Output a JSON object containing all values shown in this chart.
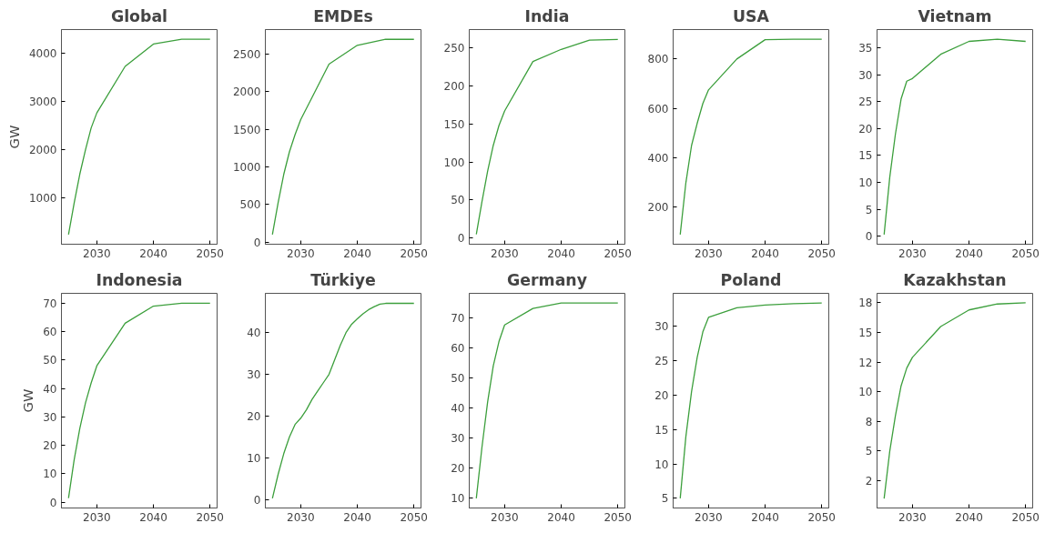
{
  "chart_data": [
    {
      "type": "line",
      "title": "Global",
      "ylabel": "GW",
      "color": "#3c9f3c",
      "x": [
        2025,
        2026,
        2027,
        2028,
        2029,
        2030,
        2035,
        2040,
        2045,
        2050
      ],
      "values": [
        250,
        900,
        1500,
        2000,
        2450,
        2760,
        3720,
        4180,
        4280,
        4280
      ],
      "xlim": [
        2023.75,
        2051.25
      ],
      "ylim": [
        50,
        4480
      ],
      "xticks": [
        2030,
        2040,
        2050
      ],
      "yticks": [
        1000,
        2000,
        3000,
        4000
      ]
    },
    {
      "type": "line",
      "title": "EMDEs",
      "color": "#3c9f3c",
      "x": [
        2025,
        2026,
        2027,
        2028,
        2029,
        2030,
        2035,
        2040,
        2045,
        2050
      ],
      "values": [
        100,
        520,
        900,
        1200,
        1430,
        1630,
        2370,
        2620,
        2700,
        2700
      ],
      "xlim": [
        2023.75,
        2051.25
      ],
      "ylim": [
        -30,
        2830
      ],
      "xticks": [
        2030,
        2040,
        2050
      ],
      "yticks": [
        0,
        500,
        1000,
        1500,
        2000,
        2500
      ]
    },
    {
      "type": "line",
      "title": "India",
      "color": "#3c9f3c",
      "x": [
        2025,
        2026,
        2027,
        2028,
        2029,
        2030,
        2035,
        2040,
        2045,
        2050
      ],
      "values": [
        5,
        48,
        88,
        122,
        148,
        167,
        232,
        248,
        260,
        261
      ],
      "xlim": [
        2023.75,
        2051.25
      ],
      "ylim": [
        -8,
        274
      ],
      "xticks": [
        2030,
        2040,
        2050
      ],
      "yticks": [
        0,
        50,
        100,
        150,
        200,
        250
      ]
    },
    {
      "type": "line",
      "title": "USA",
      "color": "#3c9f3c",
      "x": [
        2025,
        2026,
        2027,
        2028,
        2029,
        2030,
        2035,
        2040,
        2045,
        2050
      ],
      "values": [
        90,
        300,
        450,
        540,
        620,
        675,
        800,
        878,
        880,
        880
      ],
      "xlim": [
        2023.75,
        2051.25
      ],
      "ylim": [
        51,
        919
      ],
      "xticks": [
        2030,
        2040,
        2050
      ],
      "yticks": [
        200,
        400,
        600,
        800
      ]
    },
    {
      "type": "line",
      "title": "Vietnam",
      "color": "#3c9f3c",
      "x": [
        2025,
        2026,
        2027,
        2028,
        2029,
        2030,
        2035,
        2040,
        2045,
        2050
      ],
      "values": [
        0.3,
        11,
        19,
        25.5,
        28.8,
        29.3,
        33.8,
        36.2,
        36.6,
        36.2
      ],
      "xlim": [
        2023.75,
        2051.25
      ],
      "ylim": [
        -1.5,
        38.4
      ],
      "xticks": [
        2030,
        2040,
        2050
      ],
      "yticks": [
        0,
        5,
        10,
        15,
        20,
        25,
        30,
        35
      ]
    },
    {
      "type": "line",
      "title": "Indonesia",
      "ylabel": "GW",
      "color": "#3c9f3c",
      "x": [
        2025,
        2026,
        2027,
        2028,
        2029,
        2030,
        2035,
        2040,
        2045,
        2050
      ],
      "values": [
        1.5,
        15,
        26,
        35,
        42,
        48,
        63,
        69,
        70,
        70
      ],
      "xlim": [
        2023.75,
        2051.25
      ],
      "ylim": [
        -2,
        73.5
      ],
      "xticks": [
        2030,
        2040,
        2050
      ],
      "yticks": [
        0,
        10,
        20,
        30,
        40,
        50,
        60,
        70
      ]
    },
    {
      "type": "line",
      "title": "Türkiye",
      "color": "#3c9f3c",
      "x": [
        2025,
        2026,
        2027,
        2028,
        2029,
        2030,
        2031,
        2032,
        2033,
        2034,
        2035,
        2036,
        2037,
        2038,
        2039,
        2040,
        2041,
        2042,
        2043,
        2044,
        2045,
        2050
      ],
      "values": [
        0.3,
        6,
        11,
        15,
        18,
        19.5,
        21.5,
        24,
        26,
        28,
        30,
        33.5,
        37,
        40,
        42,
        43.3,
        44.5,
        45.5,
        46.2,
        46.8,
        47,
        47
      ],
      "xlim": [
        2023.75,
        2051.25
      ],
      "ylim": [
        -2,
        49.4
      ],
      "xticks": [
        2030,
        2040,
        2050
      ],
      "yticks": [
        0,
        10,
        20,
        30,
        40
      ]
    },
    {
      "type": "line",
      "title": "Germany",
      "color": "#3c9f3c",
      "x": [
        2025,
        2026,
        2027,
        2028,
        2029,
        2030,
        2035,
        2040,
        2045,
        2050
      ],
      "values": [
        10,
        27,
        42,
        54,
        62,
        67.5,
        73,
        74.8,
        74.8,
        74.8
      ],
      "xlim": [
        2023.75,
        2051.25
      ],
      "ylim": [
        6.8,
        78
      ],
      "xticks": [
        2030,
        2040,
        2050
      ],
      "yticks": [
        10,
        20,
        30,
        40,
        50,
        60,
        70
      ]
    },
    {
      "type": "line",
      "title": "Poland",
      "color": "#3c9f3c",
      "x": [
        2025,
        2026,
        2027,
        2028,
        2029,
        2030,
        2035,
        2040,
        2045,
        2050
      ],
      "values": [
        5,
        14,
        20.5,
        25.5,
        29.2,
        31.3,
        32.7,
        33.1,
        33.3,
        33.4
      ],
      "xlim": [
        2023.75,
        2051.25
      ],
      "ylim": [
        3.6,
        34.8
      ],
      "xticks": [
        2030,
        2040,
        2050
      ],
      "yticks": [
        5,
        10,
        15,
        20,
        25,
        30
      ]
    },
    {
      "type": "line",
      "title": "Kazakhstan",
      "color": "#3c9f3c",
      "x": [
        2025,
        2026,
        2027,
        2028,
        2029,
        2030,
        2035,
        2040,
        2045,
        2050
      ],
      "values": [
        1,
        5,
        8,
        10.5,
        12,
        12.9,
        15.5,
        16.9,
        17.4,
        17.5
      ],
      "xlim": [
        2023.75,
        2051.25
      ],
      "ylim": [
        0.2,
        18.3
      ],
      "xticks": [
        2030,
        2040,
        2050
      ],
      "yticks": [
        {
          "value": 2.5,
          "label": "2"
        },
        {
          "value": 5,
          "label": "5"
        },
        {
          "value": 7.5,
          "label": "8"
        },
        {
          "value": 10,
          "label": "10"
        },
        {
          "value": 12.5,
          "label": "12"
        },
        {
          "value": 15,
          "label": "15"
        },
        {
          "value": 17.5,
          "label": "18"
        }
      ]
    }
  ]
}
